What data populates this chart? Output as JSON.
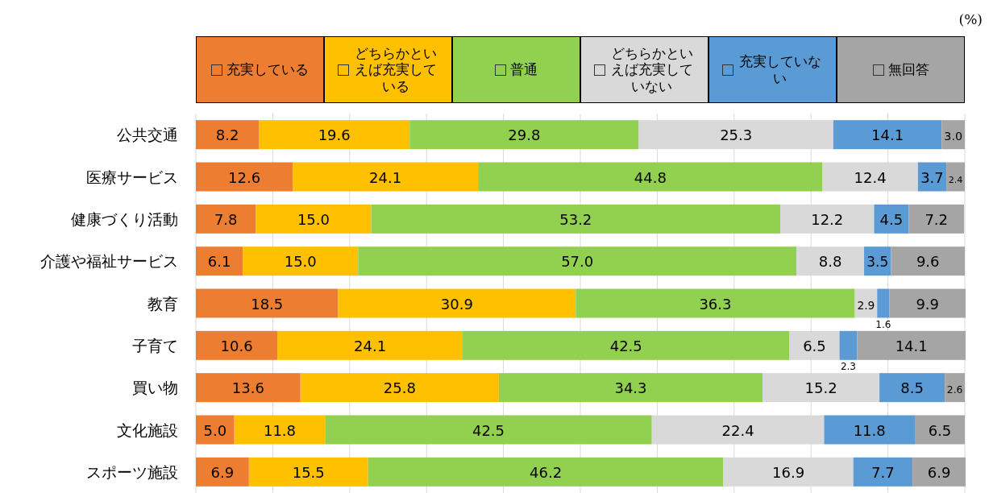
{
  "chart_data": {
    "type": "bar",
    "orientation": "horizontal",
    "stacked": true,
    "data_labels": true,
    "legend": "top",
    "grid": "x",
    "tick_labels": "y",
    "xlim": [
      0,
      100
    ],
    "xticks": [
      {
        "value": 0,
        "label": null
      },
      {
        "value": 10,
        "label": null
      },
      {
        "value": 20,
        "label": null
      },
      {
        "value": 30,
        "label": null
      },
      {
        "value": 40,
        "label": null
      },
      {
        "value": 50,
        "label": null
      },
      {
        "value": 60,
        "label": null
      },
      {
        "value": 70,
        "label": null
      },
      {
        "value": 80,
        "label": null
      },
      {
        "value": 90,
        "label": null
      },
      {
        "value": 100,
        "label": null
      }
    ],
    "annotations": [
      "(%)"
    ],
    "categories": [
      "公共交通",
      "医療サービス",
      "健康づくり活動",
      "介護や福祉サービス",
      "教育",
      "子育て",
      "買い物",
      "文化施設",
      "スポーツ施設"
    ],
    "series": [
      {
        "name": "充実している",
        "color": "#ed7d31",
        "values": [
          8.2,
          12.6,
          7.8,
          6.1,
          18.5,
          10.6,
          13.6,
          5.0,
          6.9
        ],
        "value_labels": [
          "8.2",
          "12.6",
          "7.8",
          "6.1",
          "18.5",
          "10.6",
          "13.6",
          "5.0",
          "6.9"
        ]
      },
      {
        "name": "どちらかといえば充実している",
        "color": "#ffc000",
        "values": [
          19.6,
          24.1,
          15.0,
          15.0,
          30.9,
          24.1,
          25.8,
          11.8,
          15.5
        ],
        "value_labels": [
          "19.6",
          "24.1",
          "15.0",
          "15.0",
          "30.9",
          "24.1",
          "25.8",
          "11.8",
          "15.5"
        ]
      },
      {
        "name": "普通",
        "color": "#92d050",
        "values": [
          29.8,
          44.8,
          53.2,
          57.0,
          36.3,
          42.5,
          34.3,
          42.5,
          46.2
        ],
        "value_labels": [
          "29.8",
          "44.8",
          "53.2",
          "57.0",
          "36.3",
          "42.5",
          "34.3",
          "42.5",
          "46.2"
        ]
      },
      {
        "name": "どちらかといえば充実していない",
        "color": "#d9d9d9",
        "values": [
          25.3,
          12.4,
          12.2,
          8.8,
          2.9,
          6.5,
          15.2,
          22.4,
          16.9
        ],
        "value_labels": [
          "25.3",
          "12.4",
          "12.2",
          "8.8",
          "2.9",
          "6.5",
          "15.2",
          "22.4",
          "16.9"
        ]
      },
      {
        "name": "充実していない",
        "color": "#5b9bd5",
        "values": [
          14.1,
          3.7,
          4.5,
          3.5,
          1.6,
          2.3,
          8.5,
          11.8,
          7.7
        ],
        "value_labels": [
          "14.1",
          "3.7",
          "4.5",
          "3.5",
          "1.6",
          "2.3",
          "8.5",
          "11.8",
          "7.7"
        ]
      },
      {
        "name": "無回答",
        "color": "#a5a5a5",
        "values": [
          3.0,
          2.4,
          7.2,
          9.6,
          9.9,
          14.1,
          2.6,
          6.5,
          6.9
        ],
        "value_labels": [
          "3.0",
          "2.4",
          "7.2",
          "9.6",
          "9.9",
          "14.1",
          "2.6",
          "6.5",
          "6.9"
        ]
      }
    ]
  }
}
